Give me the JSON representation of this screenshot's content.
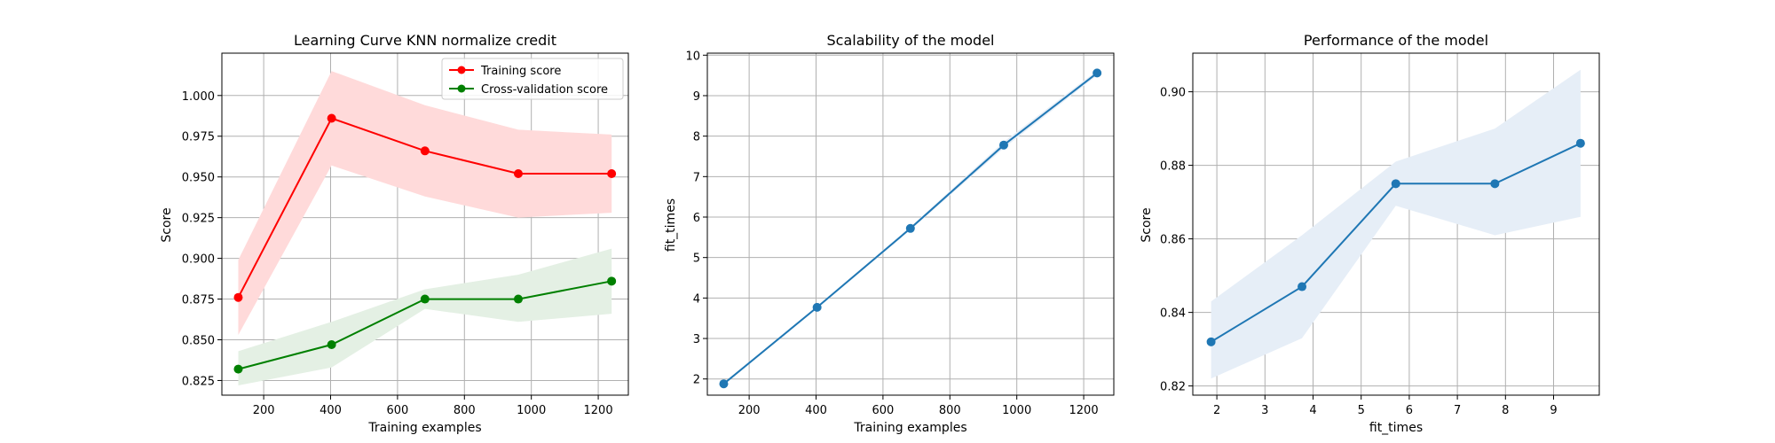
{
  "chart_data": [
    {
      "type": "line",
      "title": "Learning Curve KNN normalize credit",
      "xlabel": "Training examples",
      "ylabel": "Score",
      "xlim": [
        75,
        1290
      ],
      "ylim": [
        0.816,
        1.026
      ],
      "xticks": [
        200,
        400,
        600,
        800,
        1000,
        1200
      ],
      "yticks": [
        0.825,
        0.85,
        0.875,
        0.9,
        0.925,
        0.95,
        0.975,
        1.0
      ],
      "ytick_labels": [
        "0.825",
        "0.850",
        "0.875",
        "0.900",
        "0.925",
        "0.950",
        "0.975",
        "1.000"
      ],
      "grid": true,
      "legend": "top-right",
      "x": [
        124,
        403,
        682,
        961,
        1240
      ],
      "series": [
        {
          "name": "Training score",
          "color": "#ff0000",
          "fill": "#ffdada",
          "values": [
            0.876,
            0.986,
            0.966,
            0.952,
            0.952
          ],
          "upper": [
            0.899,
            1.015,
            0.994,
            0.979,
            0.976
          ],
          "lower": [
            0.853,
            0.957,
            0.938,
            0.925,
            0.928
          ]
        },
        {
          "name": "Cross-validation score",
          "color": "#008000",
          "fill": "#e4f0e4",
          "values": [
            0.832,
            0.847,
            0.875,
            0.875,
            0.886
          ],
          "upper": [
            0.843,
            0.861,
            0.881,
            0.89,
            0.906
          ],
          "lower": [
            0.822,
            0.833,
            0.869,
            0.861,
            0.866
          ]
        }
      ]
    },
    {
      "type": "line",
      "title": "Scalability of the model",
      "xlabel": "Training examples",
      "ylabel": "fit_times",
      "xlim": [
        75,
        1290
      ],
      "ylim": [
        1.6,
        10.05
      ],
      "xticks": [
        200,
        400,
        600,
        800,
        1000,
        1200
      ],
      "yticks": [
        2,
        3,
        4,
        5,
        6,
        7,
        8,
        9,
        10
      ],
      "grid": true,
      "x": [
        124,
        403,
        682,
        961,
        1240
      ],
      "series": [
        {
          "color": "#1f77b4",
          "fill": "#e6eef7",
          "values": [
            1.88,
            3.77,
            5.72,
            7.78,
            9.56
          ],
          "upper": [
            1.9,
            3.8,
            5.76,
            7.86,
            9.62
          ],
          "lower": [
            1.86,
            3.74,
            5.68,
            7.7,
            9.5
          ]
        }
      ]
    },
    {
      "type": "line",
      "title": "Performance of the model",
      "xlabel": "fit_times",
      "ylabel": "Score",
      "xlim": [
        1.5,
        9.95
      ],
      "ylim": [
        0.8175,
        0.9105
      ],
      "xticks": [
        2,
        3,
        4,
        5,
        6,
        7,
        8,
        9
      ],
      "yticks": [
        0.82,
        0.84,
        0.86,
        0.88,
        0.9
      ],
      "ytick_labels": [
        "0.82",
        "0.84",
        "0.86",
        "0.88",
        "0.90"
      ],
      "grid": true,
      "x": [
        1.88,
        3.77,
        5.72,
        7.78,
        9.56
      ],
      "series": [
        {
          "color": "#1f77b4",
          "fill": "#e6eef7",
          "values": [
            0.832,
            0.847,
            0.875,
            0.875,
            0.886
          ],
          "upper": [
            0.843,
            0.861,
            0.881,
            0.89,
            0.906
          ],
          "lower": [
            0.822,
            0.833,
            0.869,
            0.861,
            0.866
          ]
        }
      ]
    }
  ]
}
